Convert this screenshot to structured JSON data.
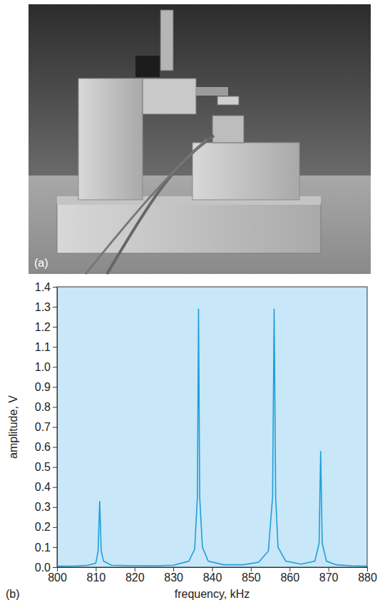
{
  "photo": {
    "label": "(a)"
  },
  "chart_data": {
    "type": "line",
    "panel_label": "(b)",
    "x_label": "frequency, kHz",
    "y_label": "amplitude, V",
    "x": [
      800,
      805,
      808,
      810,
      810.6,
      811,
      811.4,
      812,
      814,
      818,
      825,
      830,
      834,
      835.5,
      836.2,
      836.5,
      836.8,
      837.5,
      839,
      843,
      848,
      852,
      854.5,
      855.6,
      856,
      856.4,
      857,
      859,
      863,
      866.5,
      867.6,
      868,
      868.4,
      869.5,
      872,
      876,
      880
    ],
    "values": [
      0.005,
      0.006,
      0.01,
      0.02,
      0.08,
      0.33,
      0.08,
      0.03,
      0.01,
      0.008,
      0.007,
      0.01,
      0.03,
      0.09,
      0.35,
      1.29,
      0.35,
      0.1,
      0.03,
      0.012,
      0.012,
      0.025,
      0.08,
      0.35,
      1.29,
      0.35,
      0.1,
      0.03,
      0.015,
      0.03,
      0.12,
      0.58,
      0.12,
      0.03,
      0.012,
      0.007,
      0.005
    ],
    "color": "#1e9fd9",
    "xlim": [
      800,
      880
    ],
    "xticks": [
      800,
      810,
      820,
      830,
      840,
      850,
      860,
      870,
      880
    ],
    "ylim": [
      0,
      1.4
    ],
    "yticks": [
      {
        "value": 0,
        "label": "0.0"
      },
      0.1,
      0.2,
      0.3,
      0.4,
      0.5,
      0.6,
      0.7,
      0.8,
      0.9,
      {
        "value": 1,
        "label": "1.0"
      },
      1.1,
      1.2,
      1.3,
      1.4
    ],
    "grid": false
  }
}
